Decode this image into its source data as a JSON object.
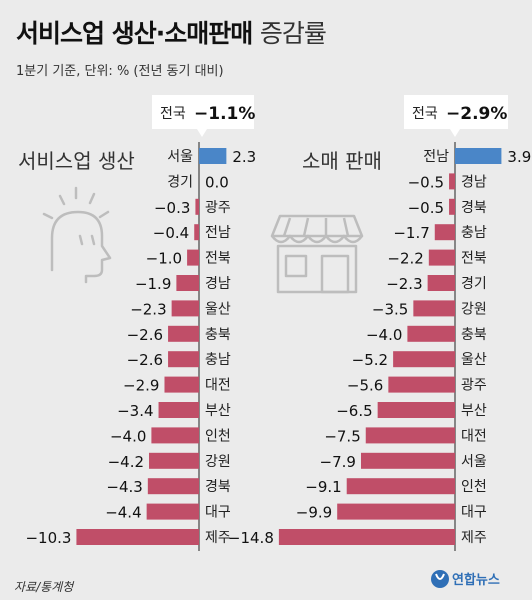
{
  "title_bold": "서비스업 생산·소매판매",
  "title_light": "증감률",
  "subtitle": "1분기 기준, 단위: % (전년 동기 대비)",
  "source": "자료/통계청",
  "logo_text": "연합뉴스",
  "colors": {
    "positive": "#4a86c8",
    "negative": "#c04e68",
    "axis": "#444444"
  },
  "icons": [
    "thinking-person-icon",
    "store-icon"
  ],
  "chart_data": [
    {
      "type": "bar",
      "title": "서비스업 생산",
      "national_label": "전국",
      "national_value": "−1.1%",
      "categories": [
        "서울",
        "경기",
        "광주",
        "전남",
        "전북",
        "경남",
        "울산",
        "충북",
        "충남",
        "대전",
        "부산",
        "인천",
        "강원",
        "경북",
        "대구",
        "제주"
      ],
      "value_labels": [
        "2.3",
        "0.0",
        "−0.3",
        "−0.4",
        "−1.0",
        "−1.9",
        "−2.3",
        "−2.6",
        "−2.6",
        "−2.9",
        "−3.4",
        "−4.0",
        "−4.2",
        "−4.3",
        "−4.4",
        "−10.3"
      ],
      "values": [
        2.3,
        0.0,
        -0.3,
        -0.4,
        -1.0,
        -1.9,
        -2.3,
        -2.6,
        -2.6,
        -2.9,
        -3.4,
        -4.0,
        -4.2,
        -4.3,
        -4.4,
        -10.3
      ]
    },
    {
      "type": "bar",
      "title": "소매 판매",
      "national_label": "전국",
      "national_value": "−2.9%",
      "categories": [
        "전남",
        "경남",
        "경북",
        "충남",
        "전북",
        "경기",
        "강원",
        "충북",
        "울산",
        "광주",
        "부산",
        "대전",
        "서울",
        "인천",
        "대구",
        "제주"
      ],
      "value_labels": [
        "3.9",
        "−0.5",
        "−0.5",
        "−1.7",
        "−2.2",
        "−2.3",
        "−3.5",
        "−4.0",
        "−5.2",
        "−5.6",
        "−6.5",
        "−7.5",
        "−7.9",
        "−9.1",
        "−9.9",
        "−14.8"
      ],
      "values": [
        3.9,
        -0.5,
        -0.5,
        -1.7,
        -2.2,
        -2.3,
        -3.5,
        -4.0,
        -5.2,
        -5.6,
        -6.5,
        -7.5,
        -7.9,
        -9.1,
        -9.9,
        -14.8
      ]
    }
  ]
}
